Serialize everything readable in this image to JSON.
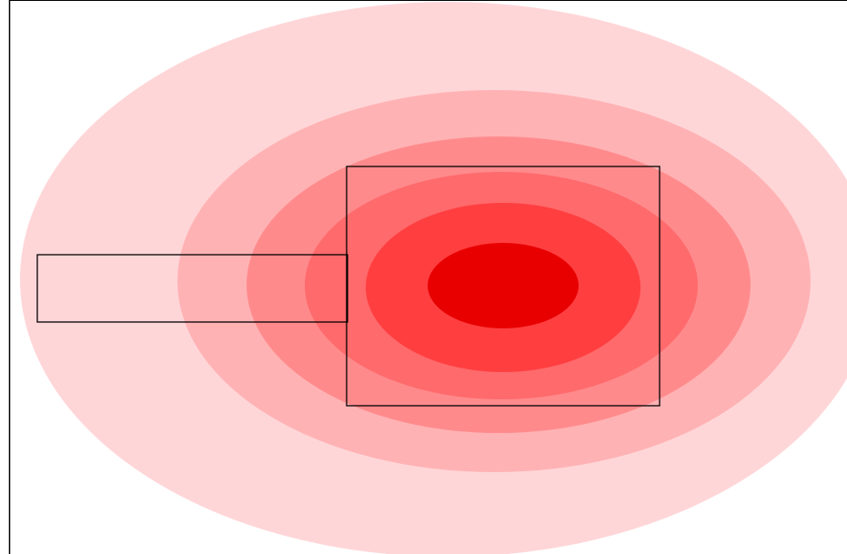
{
  "diagram": {
    "background_color": "#ffffff",
    "border_color": "#000000",
    "outline_color": "#000000",
    "contour_levels": [
      {
        "level": 1,
        "color": "#ffd6d8"
      },
      {
        "level": 2,
        "color": "#ffb2b4"
      },
      {
        "level": 3,
        "color": "#ff8a8c"
      },
      {
        "level": 4,
        "color": "#ff6a6c"
      },
      {
        "level": 5,
        "color": "#ff3e40"
      },
      {
        "level": 6,
        "color": "#e80000"
      }
    ],
    "shapes": [
      {
        "name": "wide-rectangle",
        "kind": "rectangle"
      },
      {
        "name": "square",
        "kind": "rectangle"
      }
    ]
  }
}
